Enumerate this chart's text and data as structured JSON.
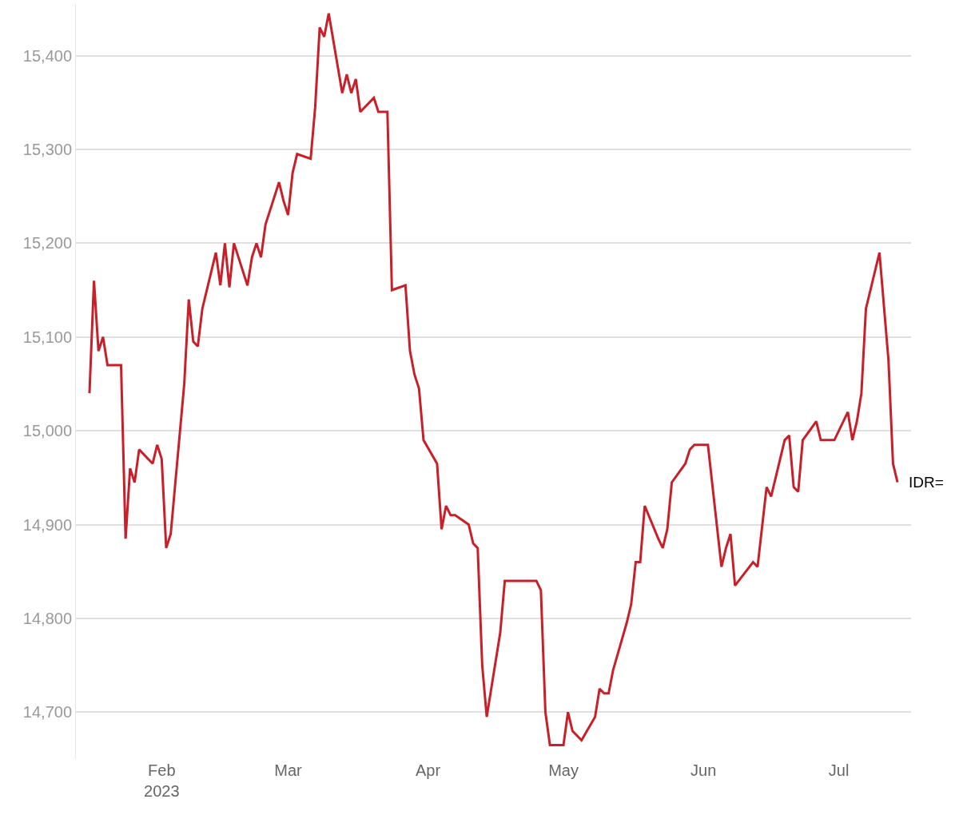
{
  "chart_data": {
    "type": "line",
    "x": [
      "2023-01-16",
      "2023-01-17",
      "2023-01-18",
      "2023-01-19",
      "2023-01-20",
      "2023-01-23",
      "2023-01-24",
      "2023-01-25",
      "2023-01-26",
      "2023-01-27",
      "2023-01-30",
      "2023-01-31",
      "2023-02-01",
      "2023-02-02",
      "2023-02-03",
      "2023-02-06",
      "2023-02-07",
      "2023-02-08",
      "2023-02-09",
      "2023-02-10",
      "2023-02-13",
      "2023-02-14",
      "2023-02-15",
      "2023-02-16",
      "2023-02-17",
      "2023-02-20",
      "2023-02-21",
      "2023-02-22",
      "2023-02-23",
      "2023-02-24",
      "2023-02-27",
      "2023-02-28",
      "2023-03-01",
      "2023-03-02",
      "2023-03-03",
      "2023-03-06",
      "2023-03-07",
      "2023-03-08",
      "2023-03-09",
      "2023-03-10",
      "2023-03-13",
      "2023-03-14",
      "2023-03-15",
      "2023-03-16",
      "2023-03-17",
      "2023-03-20",
      "2023-03-21",
      "2023-03-23",
      "2023-03-24",
      "2023-03-27",
      "2023-03-28",
      "2023-03-29",
      "2023-03-30",
      "2023-03-31",
      "2023-04-03",
      "2023-04-04",
      "2023-04-05",
      "2023-04-06",
      "2023-04-07",
      "2023-04-10",
      "2023-04-11",
      "2023-04-12",
      "2023-04-13",
      "2023-04-14",
      "2023-04-17",
      "2023-04-18",
      "2023-04-25",
      "2023-04-26",
      "2023-04-27",
      "2023-04-28",
      "2023-05-01",
      "2023-05-02",
      "2023-05-03",
      "2023-05-05",
      "2023-05-08",
      "2023-05-09",
      "2023-05-10",
      "2023-05-11",
      "2023-05-12",
      "2023-05-15",
      "2023-05-16",
      "2023-05-17",
      "2023-05-18",
      "2023-05-19",
      "2023-05-22",
      "2023-05-23",
      "2023-05-24",
      "2023-05-25",
      "2023-05-28",
      "2023-05-29",
      "2023-05-30",
      "2023-06-02",
      "2023-06-05",
      "2023-06-06",
      "2023-06-07",
      "2023-06-08",
      "2023-06-12",
      "2023-06-13",
      "2023-06-15",
      "2023-06-16",
      "2023-06-19",
      "2023-06-20",
      "2023-06-21",
      "2023-06-22",
      "2023-06-23",
      "2023-06-26",
      "2023-06-27",
      "2023-06-30",
      "2023-07-03",
      "2023-07-04",
      "2023-07-05",
      "2023-07-06",
      "2023-07-07",
      "2023-07-10",
      "2023-07-12",
      "2023-07-13",
      "2023-07-14"
    ],
    "series": [
      {
        "name": "IDR=",
        "color": "#c8202a",
        "values": [
          15040,
          15160,
          15085,
          15100,
          15070,
          15070,
          14885,
          14960,
          14945,
          14980,
          14965,
          14985,
          14970,
          14875,
          14890,
          15050,
          15140,
          15095,
          15090,
          15130,
          15190,
          15155,
          15200,
          15153,
          15200,
          15155,
          15185,
          15200,
          15185,
          15220,
          15265,
          15245,
          15230,
          15275,
          15295,
          15290,
          15345,
          15430,
          15420,
          15445,
          15360,
          15380,
          15360,
          15375,
          15340,
          15355,
          15340,
          15340,
          15150,
          15155,
          15085,
          15060,
          15045,
          14990,
          14965,
          14895,
          14920,
          14910,
          14910,
          14900,
          14880,
          14875,
          14750,
          14695,
          14785,
          14840,
          14840,
          14830,
          14700,
          14665,
          14665,
          14700,
          14680,
          14670,
          14695,
          14725,
          14720,
          14720,
          14745,
          14795,
          14815,
          14860,
          14860,
          14920,
          14885,
          14875,
          14895,
          14945,
          14965,
          14980,
          14985,
          14985,
          14855,
          14875,
          14890,
          14835,
          14860,
          14855,
          14940,
          14930,
          14990,
          14995,
          14940,
          14935,
          14990,
          15010,
          14990,
          14990,
          15020,
          14990,
          15010,
          15040,
          15130,
          15190,
          15075,
          14965,
          14945
        ]
      }
    ],
    "xlim": [
      "2023-01-13",
      "2023-07-17"
    ],
    "xticks": [
      {
        "value": "2023-02-01",
        "label": "Feb\n2023"
      },
      {
        "value": "2023-03-01",
        "label": "Mar"
      },
      {
        "value": "2023-04-01",
        "label": "Apr"
      },
      {
        "value": "2023-05-01",
        "label": "May"
      },
      {
        "value": "2023-06-01",
        "label": "Jun"
      },
      {
        "value": "2023-07-01",
        "label": "Jul"
      }
    ],
    "yticks": [
      {
        "value": 14700,
        "label": "14,700"
      },
      {
        "value": 14800,
        "label": "14,800"
      },
      {
        "value": 14900,
        "label": "14,900"
      },
      {
        "value": 15000,
        "label": "15,000"
      },
      {
        "value": 15100,
        "label": "15,100"
      },
      {
        "value": 15200,
        "label": "15,200"
      },
      {
        "value": 15300,
        "label": "15,300"
      },
      {
        "value": 15400,
        "label": "15,400"
      }
    ],
    "ylim": [
      14650,
      15455
    ],
    "grid": "y",
    "legend": false,
    "marker": "none",
    "line_style": "solid"
  }
}
